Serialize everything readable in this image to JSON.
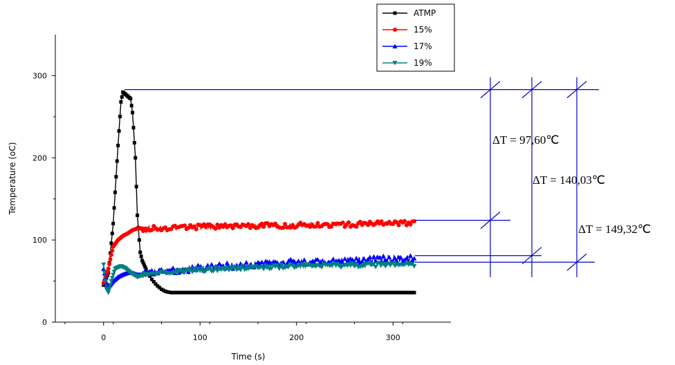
{
  "chart_data": {
    "type": "line",
    "title": "",
    "xlabel": "Time  (s)",
    "ylabel": "Temperature (oC)",
    "xlim": [
      -50,
      360
    ],
    "ylim": [
      0,
      350
    ],
    "xticks": [
      0,
      100,
      200,
      300
    ],
    "yticks": [
      0,
      100,
      200,
      300
    ],
    "xtick_labels": [
      "0",
      "100",
      "200",
      "300"
    ],
    "ytick_labels": [
      "0",
      "100",
      "200",
      "300"
    ],
    "legend_position": "top-center",
    "series": [
      {
        "name": "ATMP",
        "color": "#000000",
        "marker": "square",
        "x": [
          0,
          5,
          10,
          15,
          18,
          20,
          22,
          25,
          28,
          30,
          33,
          35,
          38,
          40,
          45,
          50,
          55,
          60,
          65,
          70,
          100,
          150,
          200,
          250,
          300,
          322
        ],
        "y": [
          45,
          60,
          120,
          215,
          268,
          280,
          278,
          275,
          272,
          255,
          200,
          130,
          85,
          75,
          62,
          52,
          45,
          40,
          37,
          36,
          36,
          36,
          36,
          36,
          36,
          36
        ]
      },
      {
        "name": "15%",
        "color": "#ff0000",
        "marker": "circle",
        "x": [
          0,
          5,
          8,
          10,
          15,
          20,
          25,
          30,
          35,
          40,
          50,
          70,
          100,
          150,
          200,
          250,
          300,
          322
        ],
        "y": [
          48,
          65,
          82,
          92,
          100,
          105,
          108,
          112,
          114,
          114,
          114,
          115,
          116,
          117,
          118,
          119,
          120,
          121
        ],
        "noise": 3
      },
      {
        "name": "17%",
        "color": "#0000ff",
        "marker": "triangle",
        "x": [
          0,
          3,
          5,
          10,
          15,
          20,
          25,
          30,
          35,
          40,
          50,
          70,
          100,
          150,
          200,
          250,
          300,
          322
        ],
        "y": [
          65,
          48,
          42,
          50,
          55,
          58,
          60,
          60,
          58,
          58,
          60,
          62,
          66,
          70,
          73,
          75,
          77,
          78
        ],
        "noise": 4
      },
      {
        "name": "19%",
        "color": "#008080",
        "marker": "triangle-down",
        "x": [
          0,
          3,
          5,
          8,
          12,
          18,
          22,
          28,
          35,
          40,
          50,
          70,
          100,
          150,
          200,
          250,
          300,
          322
        ],
        "y": [
          70,
          40,
          36,
          50,
          65,
          68,
          66,
          60,
          55,
          57,
          59,
          61,
          63,
          66,
          68,
          69,
          70,
          70
        ],
        "noise": 2.5
      }
    ],
    "annotations": [
      {
        "label": "ΔT = 97,60℃",
        "value": 97.6
      },
      {
        "label": "ΔT = 140,03℃",
        "value": 140.03
      },
      {
        "label": "ΔT = 149,32℃",
        "value": 149.32
      }
    ],
    "reference_levels": [
      283,
      124,
      81,
      73
    ],
    "annotation_color": "#0000cc",
    "grid": false
  }
}
